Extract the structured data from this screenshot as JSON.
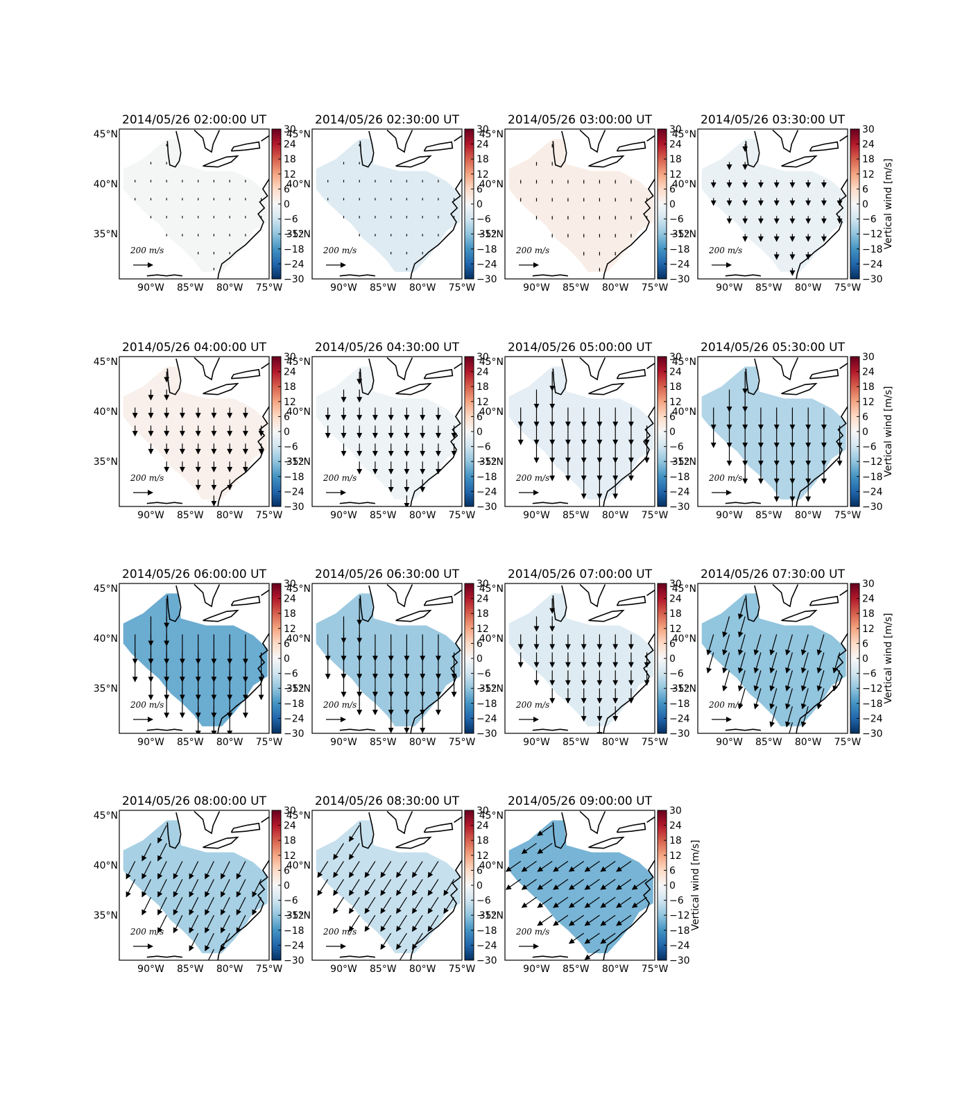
{
  "figure": {
    "panels": [
      {
        "title": "2014/05/26 02:00:00 UT",
        "w": -0.5,
        "u": 0,
        "v": -0.8
      },
      {
        "title": "2014/05/26 02:30:00 UT",
        "w": -4,
        "u": 0,
        "v": -0.8
      },
      {
        "title": "2014/05/26 03:00:00 UT",
        "w": 2,
        "u": 0,
        "v": -1.2
      },
      {
        "title": "2014/05/26 03:30:00 UT",
        "w": -2,
        "u": 0,
        "v": -2.5
      },
      {
        "title": "2014/05/26 04:00:00 UT",
        "w": 1.5,
        "u": 0,
        "v": -3.5
      },
      {
        "title": "2014/05/26 04:30:00 UT",
        "w": -1.5,
        "u": 0,
        "v": -4.2
      },
      {
        "title": "2014/05/26 05:00:00 UT",
        "w": -3,
        "u": 0,
        "v": -6.5
      },
      {
        "title": "2014/05/26 05:30:00 UT",
        "w": -9,
        "u": 0,
        "v": -7.5
      },
      {
        "title": "2014/05/26 06:00:00 UT",
        "w": -15,
        "u": 0,
        "v": -10
      },
      {
        "title": "2014/05/26 06:30:00 UT",
        "w": -11,
        "u": 0,
        "v": -9
      },
      {
        "title": "2014/05/26 07:00:00 UT",
        "w": -4,
        "u": 0,
        "v": -5
      },
      {
        "title": "2014/05/26 07:30:00 UT",
        "w": -12,
        "u": -2,
        "v": -7
      },
      {
        "title": "2014/05/26 08:00:00 UT",
        "w": -10,
        "u": -3,
        "v": -6
      },
      {
        "title": "2014/05/26 08:30:00 UT",
        "w": -7,
        "u": -3.5,
        "v": -5.5
      },
      {
        "title": "2014/05/26 09:00:00 UT",
        "w": -14,
        "u": -5,
        "v": -3.5
      }
    ],
    "lon_ticks": [
      "90°W",
      "85°W",
      "80°W",
      "75°W"
    ],
    "lat_ticks": [
      "45°N",
      "40°N",
      "35°N"
    ],
    "colorbar_ticks": [
      "30",
      "24",
      "18",
      "12",
      "6",
      "0",
      "−6",
      "−12",
      "−18",
      "−24",
      "−30"
    ],
    "colorbar_label": "Vertical wind [m/s]",
    "reference_vector": "200 m/s"
  },
  "chart_data": {
    "type": "heatmap",
    "variable": "Vertical wind [m/s]",
    "colormap": "RdBu_r",
    "vmin": -30,
    "vmax": 30,
    "lon_range": [
      -94,
      -75
    ],
    "lat_range": [
      30,
      45
    ],
    "reference_vector_mps": 200,
    "panels": [
      {
        "time": "2014/05/26 02:00:00 UT",
        "mean_vertical_wind": -0.5
      },
      {
        "time": "2014/05/26 02:30:00 UT",
        "mean_vertical_wind": -4
      },
      {
        "time": "2014/05/26 03:00:00 UT",
        "mean_vertical_wind": 2
      },
      {
        "time": "2014/05/26 03:30:00 UT",
        "mean_vertical_wind": -2
      },
      {
        "time": "2014/05/26 04:00:00 UT",
        "mean_vertical_wind": 1.5
      },
      {
        "time": "2014/05/26 04:30:00 UT",
        "mean_vertical_wind": -1.5
      },
      {
        "time": "2014/05/26 05:00:00 UT",
        "mean_vertical_wind": -3
      },
      {
        "time": "2014/05/26 05:30:00 UT",
        "mean_vertical_wind": -9
      },
      {
        "time": "2014/05/26 06:00:00 UT",
        "mean_vertical_wind": -15
      },
      {
        "time": "2014/05/26 06:30:00 UT",
        "mean_vertical_wind": -11
      },
      {
        "time": "2014/05/26 07:00:00 UT",
        "mean_vertical_wind": -4
      },
      {
        "time": "2014/05/26 07:30:00 UT",
        "mean_vertical_wind": -12
      },
      {
        "time": "2014/05/26 08:00:00 UT",
        "mean_vertical_wind": -10
      },
      {
        "time": "2014/05/26 08:30:00 UT",
        "mean_vertical_wind": -7
      },
      {
        "time": "2014/05/26 09:00:00 UT",
        "mean_vertical_wind": -14
      }
    ]
  }
}
